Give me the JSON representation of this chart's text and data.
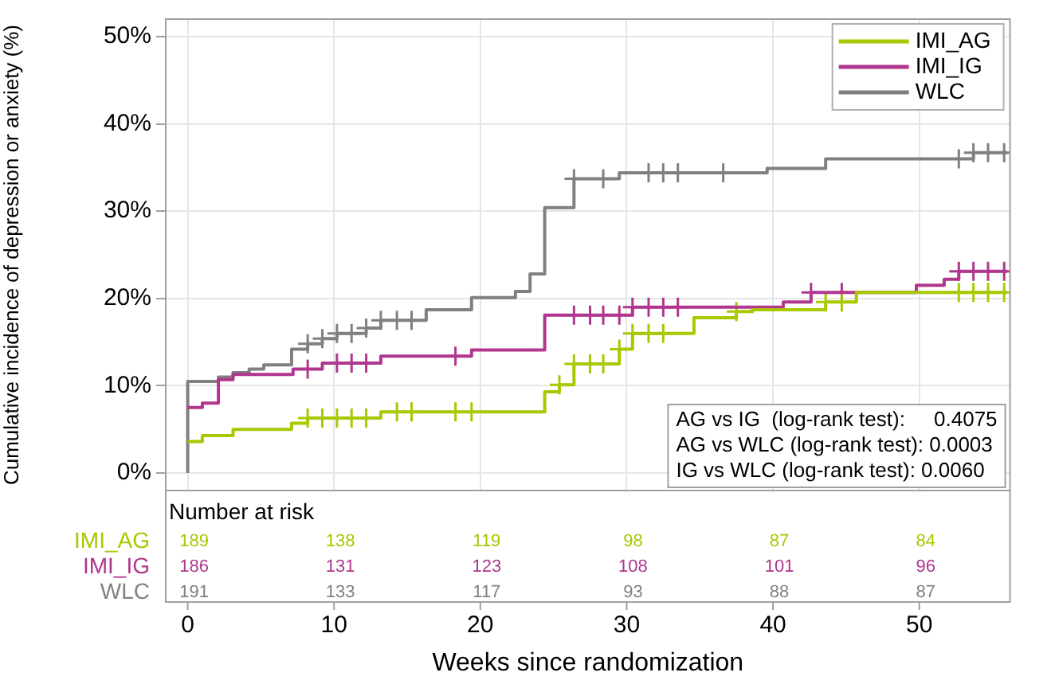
{
  "chart_data": {
    "type": "step",
    "xlabel": "Weeks since randomization",
    "ylabel": "Cumulative incidence of depression or anxiety (%)",
    "xlim": [
      -1.5,
      56.2
    ],
    "xticks": [
      0,
      10,
      20,
      30,
      40,
      50
    ],
    "ylim": [
      -2,
      52
    ],
    "yticks": [
      {
        "value": 0,
        "label": "0%"
      },
      {
        "value": 10,
        "label": "10%"
      },
      {
        "value": 20,
        "label": "20%"
      },
      {
        "value": 30,
        "label": "30%"
      },
      {
        "value": 40,
        "label": "40%"
      },
      {
        "value": 50,
        "label": "50%"
      }
    ],
    "grid": true,
    "legend": "top right",
    "line_style": "solid",
    "series": [
      {
        "name": "IMI_AG",
        "color": "#a8c800",
        "x": [
          0,
          1.0,
          3.1,
          7.1,
          8.2,
          13.2,
          24.4,
          25.4,
          26.4,
          29.5,
          30.4,
          34.6,
          37.5,
          38.6,
          43.6,
          45.7,
          56
        ],
        "values": [
          3.6,
          4.3,
          5.0,
          5.7,
          6.3,
          7.0,
          9.3,
          10.1,
          12.5,
          14.2,
          16.0,
          17.8,
          18.5,
          18.7,
          19.6,
          20.7,
          20.7
        ]
      },
      {
        "name": "IMI_IG",
        "color": "#b0368e",
        "x": [
          0,
          1.0,
          2.1,
          3.1,
          7.2,
          9.2,
          13.2,
          19.4,
          24.4,
          30.4,
          40.7,
          42.6,
          49.8,
          51.7,
          52.7,
          56
        ],
        "values": [
          7.5,
          8.0,
          10.7,
          11.3,
          11.9,
          12.6,
          13.4,
          14.1,
          18.1,
          19.0,
          19.6,
          20.7,
          21.5,
          22.2,
          23.1,
          23.1
        ]
      },
      {
        "name": "WLC",
        "color": "#808080",
        "x": [
          0,
          0,
          2.1,
          3.1,
          4.2,
          5.2,
          7.1,
          8.2,
          9.2,
          10.2,
          12.2,
          13.2,
          16.3,
          19.4,
          22.4,
          23.4,
          24.4,
          26.4,
          29.5,
          39.6,
          43.6,
          53.7,
          56
        ],
        "values": [
          0,
          10.5,
          11.0,
          11.5,
          11.9,
          12.4,
          14.2,
          14.8,
          15.4,
          16.0,
          16.6,
          17.5,
          18.7,
          20.1,
          20.8,
          22.8,
          30.4,
          33.7,
          34.4,
          34.9,
          36.0,
          36.7,
          36.7
        ]
      },
      {
        "type": "scatter",
        "marker": "cross",
        "color": "#a8c800",
        "x": [
          8.2,
          9.2,
          10.2,
          11.2,
          12.2,
          14.3,
          15.3,
          18.3,
          19.4,
          25.4,
          26.4,
          27.5,
          28.4,
          29.5,
          30.4,
          31.5,
          32.5,
          37.5,
          43.6,
          44.7,
          52.7,
          53.7,
          54.7,
          55.8
        ],
        "values": [
          6.3,
          6.3,
          6.3,
          6.3,
          6.3,
          7.0,
          7.0,
          7.0,
          7.0,
          10.1,
          12.5,
          12.5,
          12.5,
          14.2,
          16.0,
          16.0,
          16.0,
          18.5,
          19.6,
          19.6,
          20.7,
          20.7,
          20.7,
          20.7
        ]
      },
      {
        "type": "scatter",
        "marker": "cross",
        "color": "#b0368e",
        "x": [
          8.2,
          10.2,
          11.2,
          12.2,
          18.3,
          26.4,
          27.5,
          28.4,
          29.5,
          30.4,
          31.5,
          32.5,
          33.5,
          42.6,
          44.7,
          52.7,
          53.7,
          54.7,
          55.8
        ],
        "values": [
          11.9,
          12.6,
          12.6,
          12.6,
          13.4,
          18.1,
          18.1,
          18.1,
          18.1,
          19.0,
          19.0,
          19.0,
          19.0,
          20.7,
          20.7,
          23.1,
          23.1,
          23.1,
          23.1
        ]
      },
      {
        "type": "scatter",
        "marker": "cross",
        "color": "#808080",
        "x": [
          8.2,
          9.2,
          10.2,
          11.2,
          12.2,
          13.2,
          14.3,
          15.3,
          26.4,
          28.4,
          31.5,
          32.5,
          33.5,
          36.6,
          52.7,
          53.7,
          54.7,
          55.8
        ],
        "values": [
          14.8,
          15.4,
          16.0,
          16.0,
          16.6,
          17.5,
          17.5,
          17.5,
          33.7,
          33.7,
          34.4,
          34.4,
          34.4,
          34.4,
          36.0,
          36.7,
          36.7,
          36.7
        ]
      }
    ],
    "annotations": [
      "AG vs IG  (log-rank test):     0.4075",
      "AG vs WLC (log-rank test): 0.0003",
      "IG vs WLC (log-rank test): 0.0060",
      "Number at risk",
      "189",
      "138",
      "119",
      "98",
      "87",
      "84",
      "186",
      "131",
      "123",
      "108",
      "101",
      "96",
      "191",
      "133",
      "117",
      "93",
      "88",
      "87"
    ]
  }
}
